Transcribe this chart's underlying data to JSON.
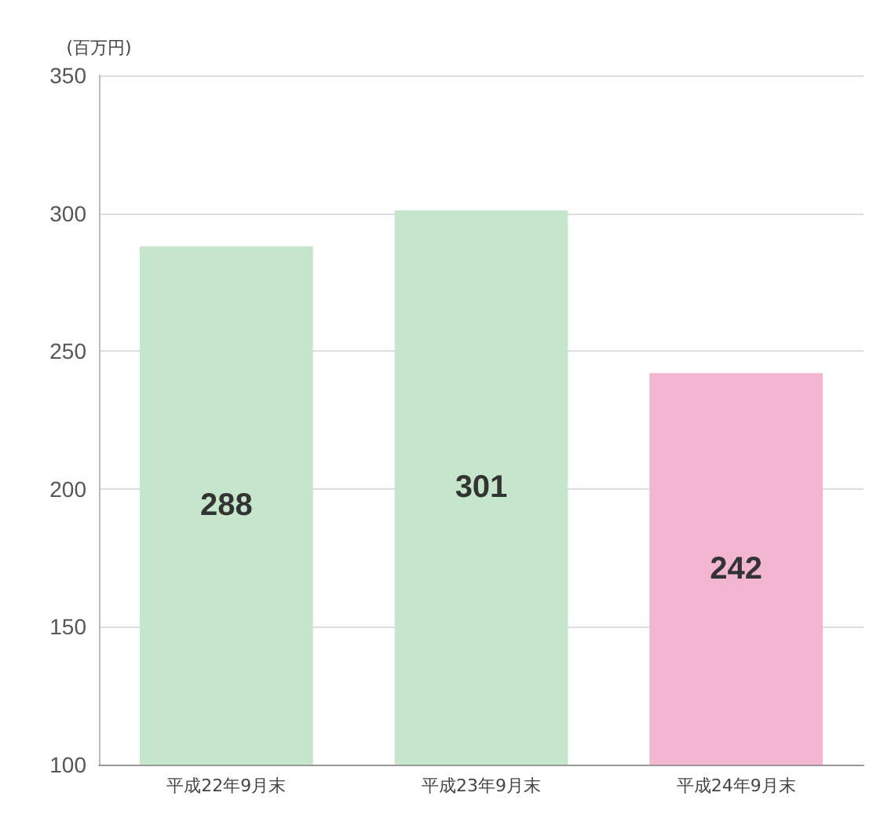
{
  "chart_data": {
    "type": "bar",
    "ylabel": "(百万円)",
    "categories": [
      "平成22年9月末",
      "平成23年9月末",
      "平成24年9月末"
    ],
    "values": [
      288,
      301,
      242
    ],
    "colors": [
      "#c6e6cb",
      "#c6e6cb",
      "#f2b6d0"
    ],
    "ylim": [
      100,
      350
    ],
    "yticks": [
      100,
      150,
      200,
      250,
      300,
      350
    ],
    "grid": "y",
    "data_labels": true
  }
}
